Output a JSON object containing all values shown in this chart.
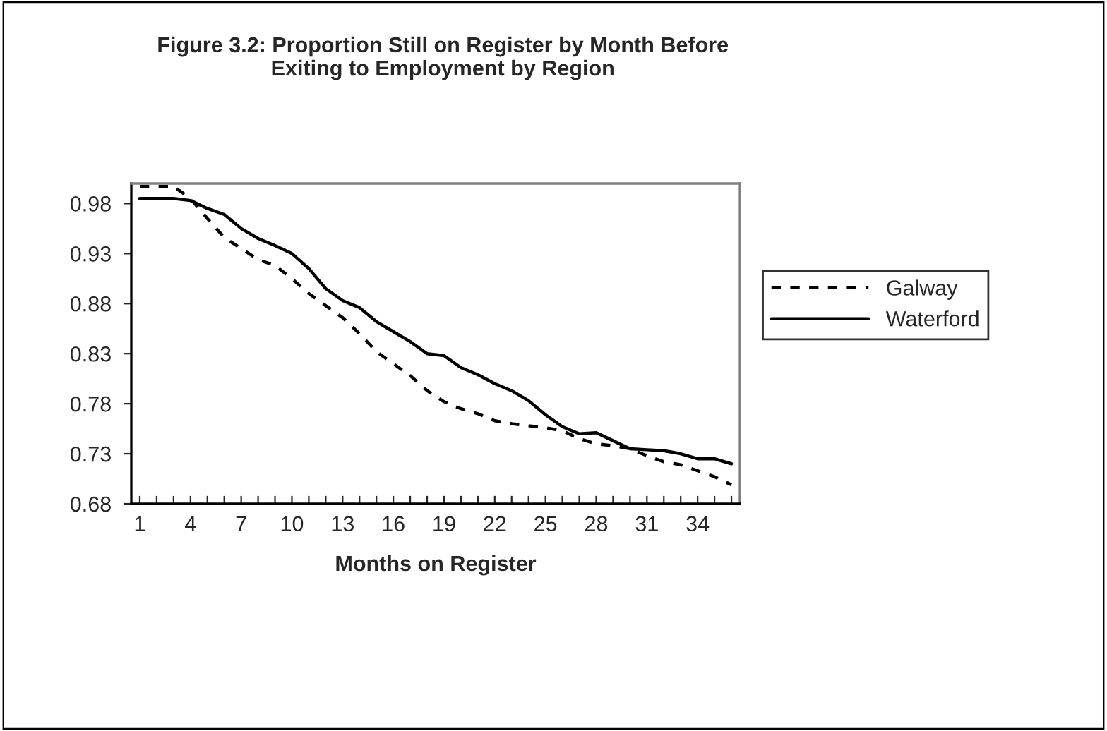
{
  "chart_data": {
    "type": "line",
    "title": "Figure 3.2: Proportion Still on Register by Month Before\nExiting to Employment by Region",
    "xlabel": "Months on Register",
    "categories": [
      "1",
      null,
      null,
      "4",
      null,
      null,
      "7",
      null,
      null,
      "10",
      null,
      null,
      "13",
      null,
      null,
      "16",
      null,
      null,
      "19",
      null,
      null,
      "22",
      null,
      null,
      "25",
      null,
      null,
      "28",
      null,
      null,
      "31",
      null,
      null,
      "34",
      null,
      null
    ],
    "series": [
      {
        "name": "Galway",
        "color": "#000000",
        "line_style": "dashed",
        "values": [
          0.997,
          0.997,
          0.997,
          0.985,
          0.965,
          0.946,
          0.935,
          0.924,
          0.918,
          0.905,
          0.89,
          0.878,
          0.866,
          0.85,
          0.832,
          0.82,
          0.808,
          0.793,
          0.782,
          0.775,
          0.77,
          0.763,
          0.76,
          0.758,
          0.756,
          0.753,
          0.745,
          0.74,
          0.738,
          0.735,
          0.728,
          0.722,
          0.719,
          0.713,
          0.707,
          0.699
        ]
      },
      {
        "name": "Waterford",
        "color": "#000000",
        "line_style": "solid",
        "values": [
          0.985,
          0.985,
          0.985,
          0.983,
          0.975,
          0.969,
          0.955,
          0.945,
          0.938,
          0.93,
          0.915,
          0.895,
          0.883,
          0.876,
          0.862,
          0.852,
          0.842,
          0.83,
          0.828,
          0.816,
          0.809,
          0.8,
          0.793,
          0.783,
          0.769,
          0.757,
          0.75,
          0.751,
          0.743,
          0.735,
          0.734,
          0.733,
          0.73,
          0.725,
          0.725,
          0.72
        ]
      }
    ],
    "ylim": [
      0.68,
      1.0
    ],
    "yticks": [
      0.68,
      0.73,
      0.78,
      0.83,
      0.88,
      0.93,
      0.98
    ],
    "grid": false,
    "legend": "right",
    "marker": "none"
  }
}
